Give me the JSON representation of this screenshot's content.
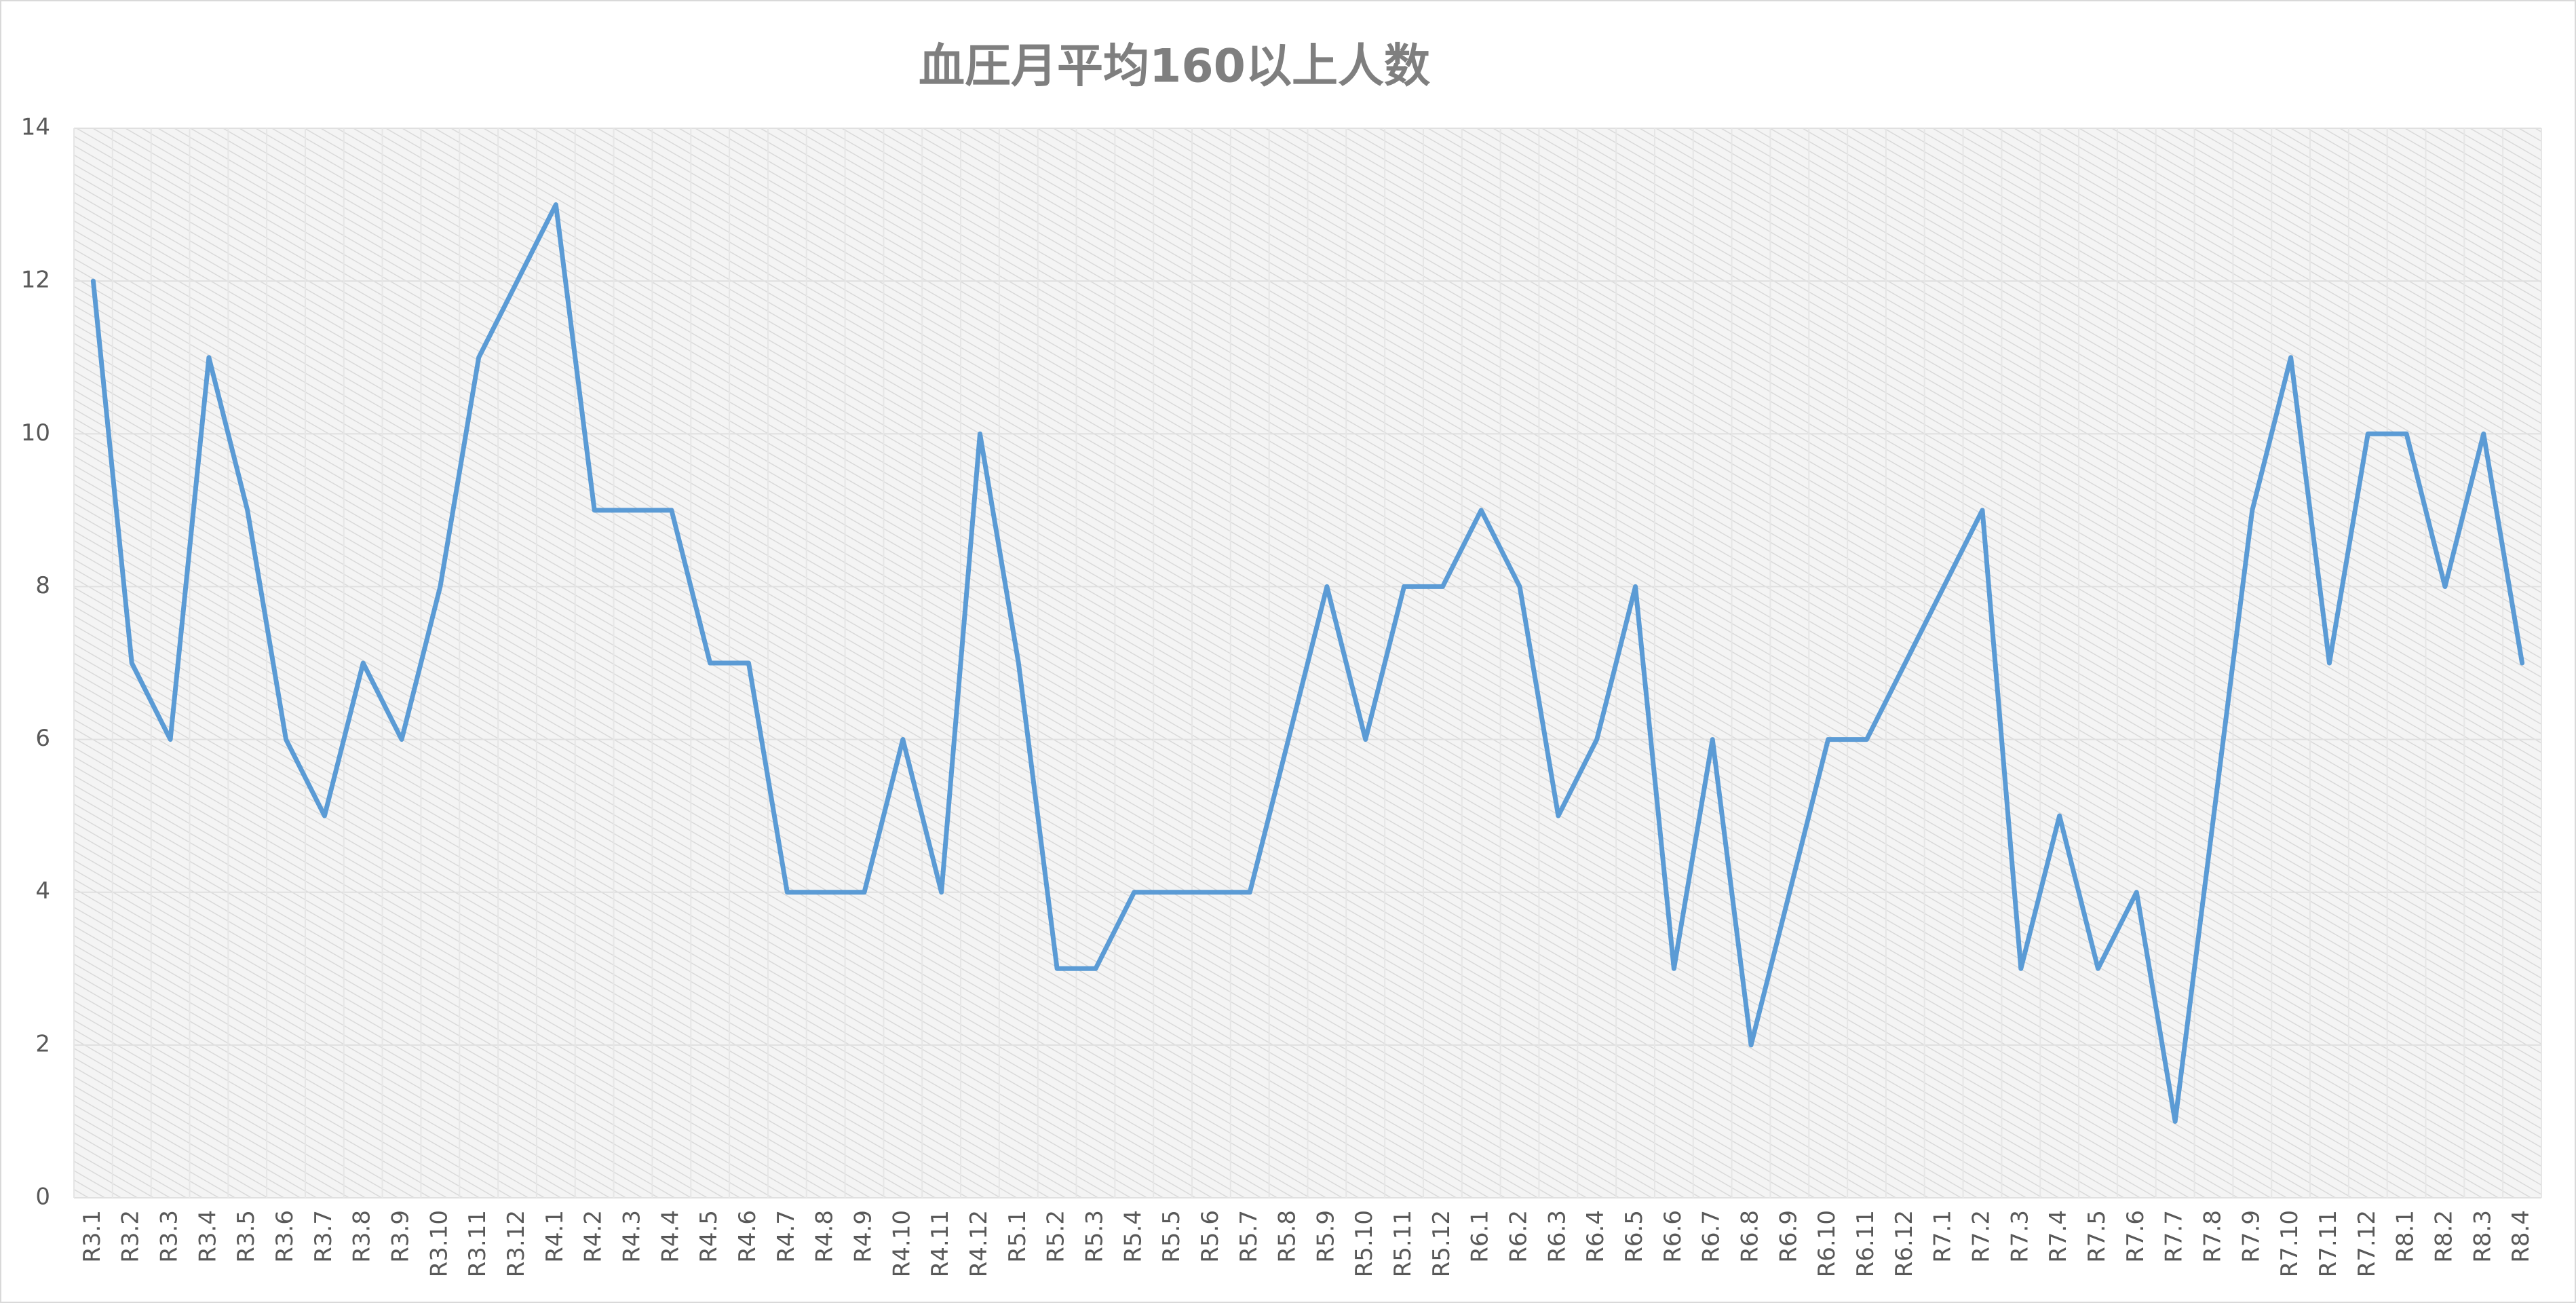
{
  "chart_data": {
    "type": "line",
    "title": "血圧月平均160以上人数",
    "categories": [
      "R3.1",
      "R3.2",
      "R3.3",
      "R3.4",
      "R3.5",
      "R3.6",
      "R3.7",
      "R3.8",
      "R3.9",
      "R3.10",
      "R3.11",
      "R3.12",
      "R4.1",
      "R4.2",
      "R4.3",
      "R4.4",
      "R4.5",
      "R4.6",
      "R4.7",
      "R4.8",
      "R4.9",
      "R4.10",
      "R4.11",
      "R4.12",
      "R5.1",
      "R5.2",
      "R5.3",
      "R5.4",
      "R5.5",
      "R5.6",
      "R5.7",
      "R5.8",
      "R5.9",
      "R5.10",
      "R5.11",
      "R5.12",
      "R6.1",
      "R6.2",
      "R6.3",
      "R6.4",
      "R6.5",
      "R6.6",
      "R6.7",
      "R6.8",
      "R6.9",
      "R6.10",
      "R6.11",
      "R6.12",
      "R7.1",
      "R7.2",
      "R7.3",
      "R7.4",
      "R7.5",
      "R7.6",
      "R7.7",
      "R7.8",
      "R7.9",
      "R7.10",
      "R7.11",
      "R7.12",
      "R8.1",
      "R8.2",
      "R8.3",
      "R8.4"
    ],
    "values": [
      12,
      7,
      6,
      11,
      9,
      6,
      5,
      7,
      6,
      8,
      11,
      12,
      13,
      9,
      9,
      9,
      7,
      7,
      4,
      4,
      4,
      6,
      4,
      10,
      7,
      3,
      3,
      4,
      4,
      4,
      4,
      6,
      8,
      6,
      8,
      8,
      9,
      8,
      5,
      6,
      8,
      3,
      6,
      2,
      4,
      6,
      6,
      7,
      8,
      9,
      3,
      5,
      3,
      4,
      1,
      5,
      9,
      11,
      7,
      10,
      10,
      8,
      10,
      7
    ],
    "color": "#5b9bd5",
    "ylim": [
      0,
      14
    ],
    "yticks": [
      0,
      2,
      4,
      6,
      8,
      10,
      12,
      14
    ],
    "grid": true
  }
}
